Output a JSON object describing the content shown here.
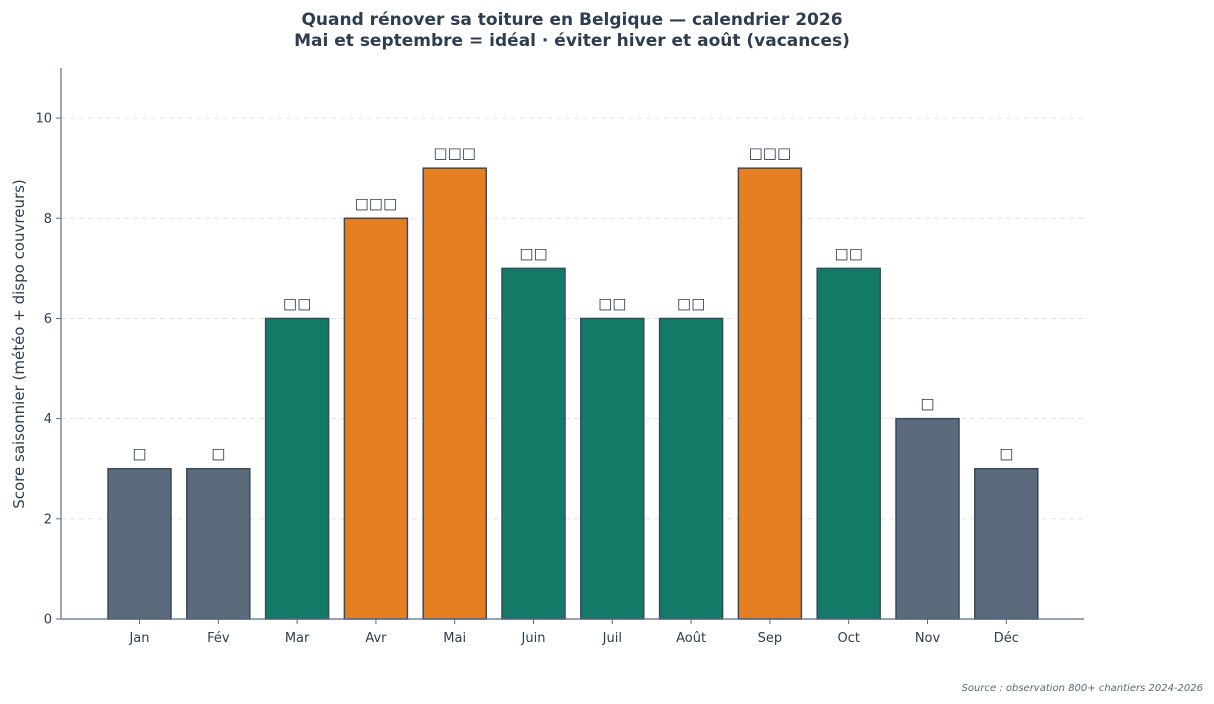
{
  "chart_data": {
    "type": "bar",
    "title": "Quand rénover sa toiture en Belgique — calendrier 2026",
    "subtitle": "Mai et septembre = idéal · éviter hiver et août (vacances)",
    "xlabel": "",
    "ylabel": "Score saisonnier (météo + dispo couvreurs)",
    "ylim": [
      0,
      11
    ],
    "yticks": [
      0,
      2,
      4,
      6,
      8,
      10
    ],
    "grid": true,
    "categories": [
      "Jan",
      "Fév",
      "Mar",
      "Avr",
      "Mai",
      "Juin",
      "Juil",
      "Août",
      "Sep",
      "Oct",
      "Nov",
      "Déc"
    ],
    "values": [
      3,
      3,
      6,
      8,
      9,
      7,
      6,
      6,
      9,
      7,
      4,
      3
    ],
    "bar_labels": [
      "□",
      "□",
      "□□",
      "□□□",
      "□□□",
      "□□",
      "□□",
      "□□",
      "□□□",
      "□□",
      "□",
      "□"
    ],
    "bar_colors": [
      "#5c6b7c",
      "#5c6b7c",
      "#127a66",
      "#e67e22",
      "#e67e22",
      "#127a66",
      "#127a66",
      "#127a66",
      "#e67e22",
      "#127a66",
      "#5c6b7c",
      "#5c6b7c"
    ],
    "source": "Source : observation 800+ chantiers 2024-2026"
  }
}
